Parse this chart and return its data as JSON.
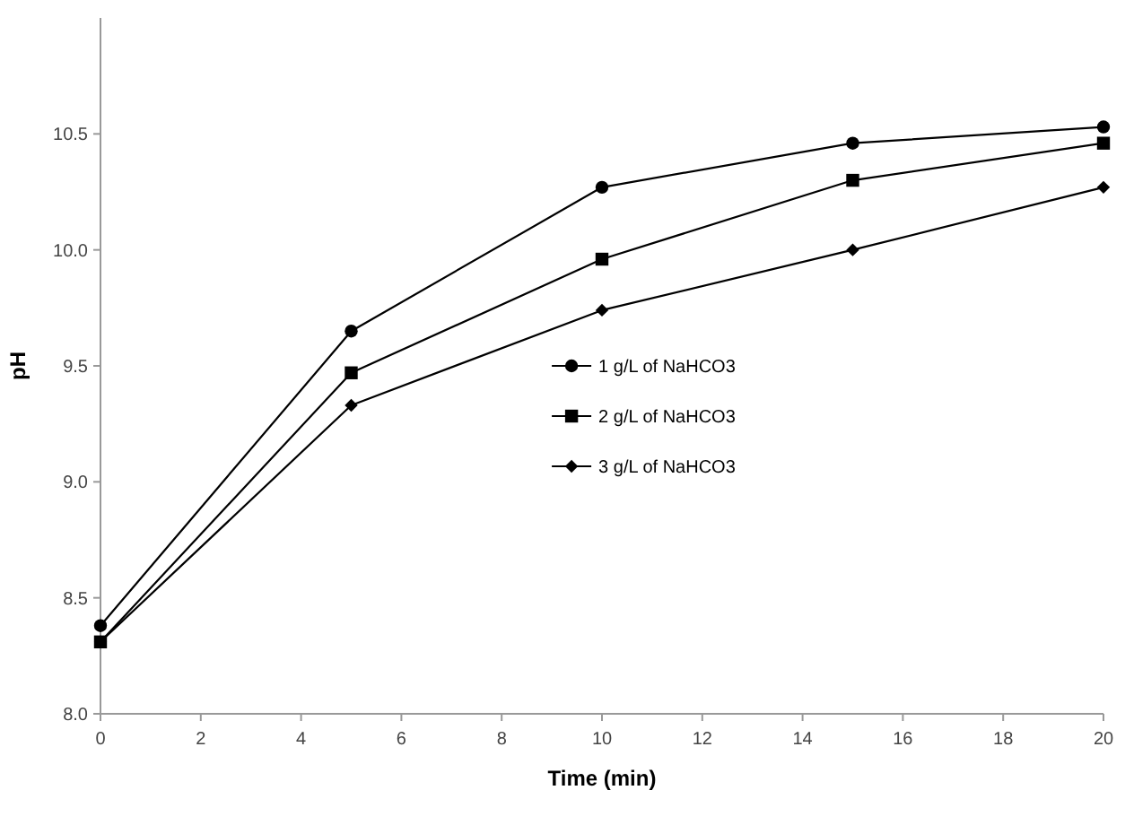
{
  "chart_data": {
    "type": "line",
    "xlabel": "Time (min)",
    "ylabel": "pH",
    "x": [
      0,
      5,
      10,
      15,
      20
    ],
    "series": [
      {
        "name": "1 g/L of NaHCO3",
        "color": "#000000",
        "marker": "circle",
        "values": [
          8.38,
          9.65,
          10.27,
          10.46,
          10.53
        ]
      },
      {
        "name": "2 g/L of NaHCO3",
        "color": "#000000",
        "marker": "square",
        "values": [
          8.31,
          9.47,
          9.96,
          10.3,
          10.46
        ]
      },
      {
        "name": "3 g/L of NaHCO3",
        "color": "#000000",
        "marker": "diamond",
        "values": [
          8.31,
          9.33,
          9.74,
          10.0,
          10.27
        ]
      }
    ],
    "xlim": [
      0,
      20
    ],
    "xticks": [
      0,
      2,
      4,
      6,
      8,
      10,
      12,
      14,
      16,
      18,
      20
    ],
    "ylim": [
      8,
      11
    ],
    "yticks": [
      {
        "value": 8,
        "label": "8.0"
      },
      {
        "value": 8.5,
        "label": "8.5"
      },
      {
        "value": 9,
        "label": "9.0"
      },
      {
        "value": 9.5,
        "label": "9.5"
      },
      {
        "value": 10,
        "label": "10.0"
      },
      {
        "value": 10.5,
        "label": "10.5"
      }
    ],
    "grid": false,
    "legend": "center",
    "line_style": "solid"
  }
}
